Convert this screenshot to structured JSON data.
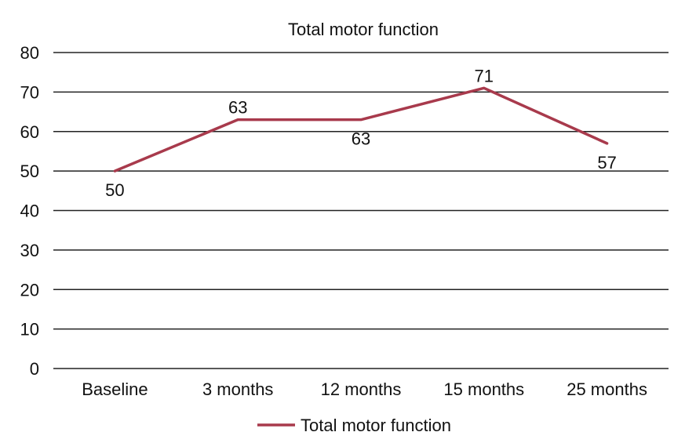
{
  "chart_data": {
    "type": "line",
    "title": "Total motor function",
    "xlabel": "",
    "ylabel": "",
    "categories": [
      "Baseline",
      "3 months",
      "12 months",
      "15 months",
      "25 months"
    ],
    "series": [
      {
        "name": "Total motor function",
        "values": [
          50,
          63,
          63,
          71,
          57
        ],
        "color": "#a83a4c"
      }
    ],
    "ylim": [
      0,
      80
    ],
    "yticks": [
      0,
      10,
      20,
      30,
      40,
      50,
      60,
      70,
      80
    ],
    "grid": true,
    "legend_position": "bottom",
    "data_labels": [
      "50",
      "63",
      "63",
      "71",
      "57"
    ]
  }
}
